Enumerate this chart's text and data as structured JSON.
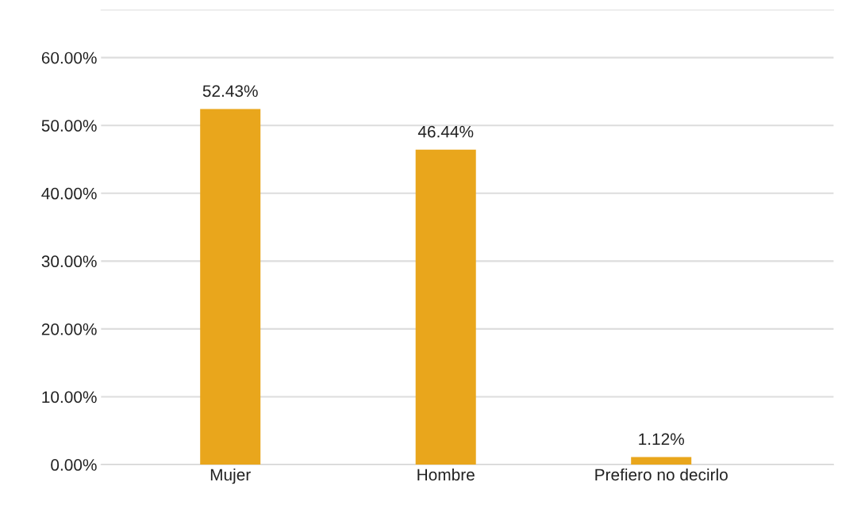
{
  "chart_data": {
    "type": "bar",
    "categories": [
      "Mujer",
      "Hombre",
      "Prefiero no decirlo"
    ],
    "values": [
      52.43,
      46.44,
      1.12
    ],
    "value_labels": [
      "52.43%",
      "46.44%",
      "1.12%"
    ],
    "color": "#e9a61c",
    "ylim": [
      0,
      67
    ],
    "yticks": [
      {
        "value": 0,
        "label": "0.00%"
      },
      {
        "value": 10,
        "label": "10.00%"
      },
      {
        "value": 20,
        "label": "20.00%"
      },
      {
        "value": 30,
        "label": "30.00%"
      },
      {
        "value": 40,
        "label": "40.00%"
      },
      {
        "value": 50,
        "label": "50.00%"
      },
      {
        "value": 60,
        "label": "60.00%"
      }
    ],
    "grid": "y"
  }
}
